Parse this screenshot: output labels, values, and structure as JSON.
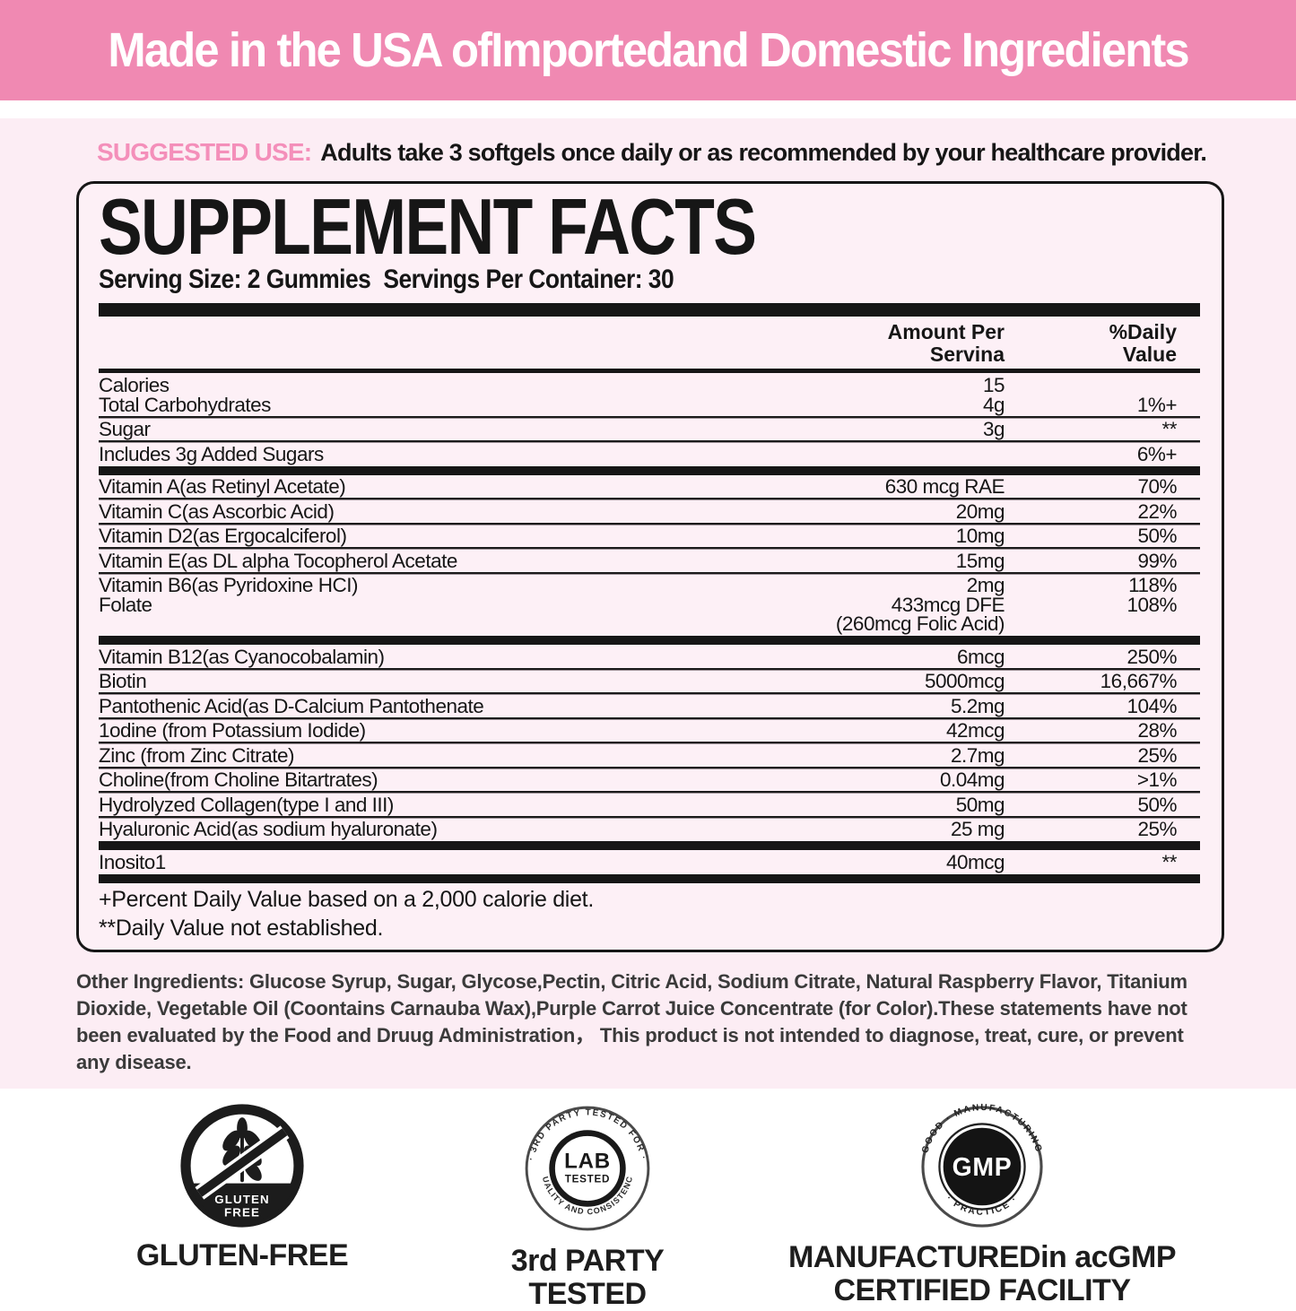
{
  "banner": {
    "text": "Made in the USA ofImportedand Domestic Ingredients",
    "bg_color": "#f089b2"
  },
  "suggested_use": {
    "label": "SUGGESTED USE:",
    "text": "Adults take 3 softgels once daily or as recommended by your healthcare provider.",
    "label_color": "#f48fba"
  },
  "supplement_facts": {
    "title": "SUPPLEMENT FACTS",
    "serving_size": "Serving Size: 2 Gummies",
    "servings_per_container": "Servings Per Container: 30",
    "table_header": {
      "amount_line1": "Amount Per",
      "amount_line2": "Servina",
      "dv_line1": "%Daily",
      "dv_line2": "Value"
    },
    "rows": [
      {
        "name": "Calories",
        "amount": "15",
        "dv": "",
        "sep": "none"
      },
      {
        "name": "Total Carbohydrates",
        "amount": "4g",
        "dv": "1%+",
        "sep": "thin"
      },
      {
        "name": "Sugar",
        "amount": "3g",
        "dv": "**",
        "sep": "thin"
      },
      {
        "name": "Includes 3g Added Sugars",
        "amount": "",
        "dv": "6%+",
        "sep": "thick"
      },
      {
        "name": "Vitamin A(as Retinyl Acetate)",
        "amount": "630 mcg RAE",
        "dv": "70%",
        "sep": "thin"
      },
      {
        "name": "Vitamin C(as Ascorbic Acid)",
        "amount": "20mg",
        "dv": "22%",
        "sep": "thin"
      },
      {
        "name": "Vitamin D2(as Ergocalciferol)",
        "amount": "10mg",
        "dv": "50%",
        "sep": "thin"
      },
      {
        "name": "Vitamin E(as DL alpha Tocopherol Acetate",
        "amount": "15mg",
        "dv": "99%",
        "sep": "thin"
      },
      {
        "name": "Vitamin B6(as Pyridoxine HCI)",
        "amount": "2mg",
        "dv": "118%",
        "sep": "none"
      },
      {
        "name": "Folate",
        "amount": "433mcg DFE",
        "dv": "108%",
        "sep": "none"
      },
      {
        "name": "",
        "amount": "(260mcg Folic Acid)",
        "dv": "",
        "sep": "thick"
      },
      {
        "name": "Vitamin B12(as Cyanocobalamin)",
        "amount": "6mcg",
        "dv": "250%",
        "sep": "thin"
      },
      {
        "name": "Biotin",
        "amount": "5000mcg",
        "dv": "16,667%",
        "sep": "thin"
      },
      {
        "name": "Pantothenic Acid(as D-Calcium Pantothenate",
        "amount": "5.2mg",
        "dv": "104%",
        "sep": "thin"
      },
      {
        "name": "1odine (from Potassium Iodide)",
        "amount": "42mcg",
        "dv": "28%",
        "sep": "thin"
      },
      {
        "name": "Zinc (from Zinc Citrate)",
        "amount": "2.7mg",
        "dv": "25%",
        "sep": "thin"
      },
      {
        "name": "Choline(from Choline Bitartrates)",
        "amount": "0.04mg",
        "dv": ">1%",
        "sep": "thin"
      },
      {
        "name": "Hydrolyzed Collagen(type I and III)",
        "amount": "50mg",
        "dv": "50%",
        "sep": "thin"
      },
      {
        "name": "Hyaluronic Acid(as sodium hyaluronate)",
        "amount": "25 mg",
        "dv": "25%",
        "sep": "thick"
      },
      {
        "name": "Inosito1",
        "amount": "40mcg",
        "dv": "**",
        "sep": "thick"
      }
    ],
    "footnote_daily_value": "+Percent Daily Value based on a 2,000 calorie diet.",
    "footnote_not_established": "**Daily Value not established."
  },
  "other_ingredients": "Other Ingredients: Glucose Syrup, Sugar, Glycose,Pectin, Citric Acid, Sodium Citrate, Natural Raspberry Flavor, Titanium Dioxide, Vegetable Oil (Coontains Carnauba Wax),Purple Carrot Juice Concentrate (for Color).These statements have not been evaluated by the Food and Druug Administration， This product is not intended to diagnose, treat, cure, or prevent any disease.",
  "badges": {
    "gluten": {
      "circle_line1": "GLUTEN",
      "circle_line2": "FREE",
      "label": "GLUTEN-FREE"
    },
    "lab": {
      "ring_top": "· 3RD PARTY TESTED FOR ·",
      "ring_bottom": "QUALITY AND CONSISTENCY",
      "center_line1": "LAB",
      "center_line2": "TESTED",
      "label_line1": "3rd PARTY",
      "label_line2": "TESTED"
    },
    "gmp": {
      "ring_top": "GOOD · MANUFACTURING",
      "ring_bottom": "· PRACTICE ·",
      "center": "GMP",
      "label_line1": "MANUFACTUREDin acGMP",
      "label_line2": "CERTIFIED FACILITY"
    }
  },
  "colors": {
    "banner_pink": "#f089b2",
    "accent_pink": "#f48fba",
    "page_pink": "#fcedf4",
    "box_pink": "#fdf0f6",
    "text_black": "#161616"
  }
}
